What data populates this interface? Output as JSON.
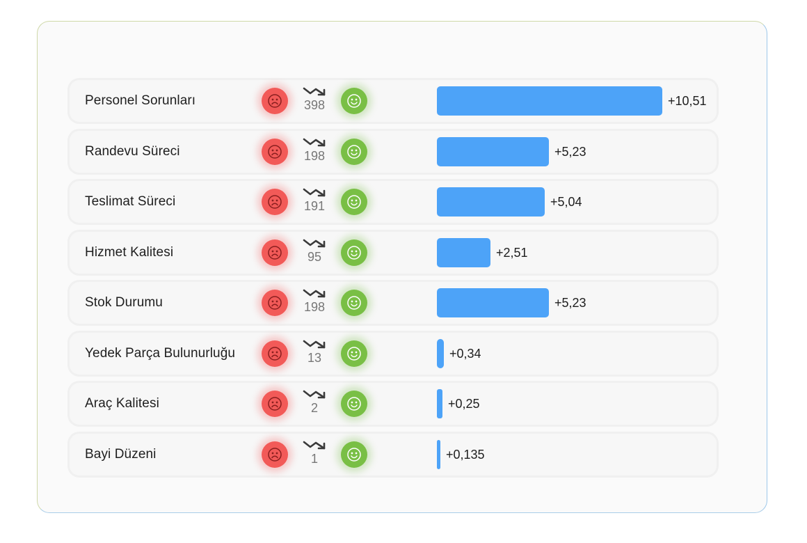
{
  "items": [
    {
      "label": "Personel Sorunları",
      "count": "398",
      "score_label": "+10,51",
      "score": 10.51
    },
    {
      "label": "Randevu Süreci",
      "count": "198",
      "score_label": "+5,23",
      "score": 5.23
    },
    {
      "label": "Teslimat Süreci",
      "count": "191",
      "score_label": "+5,04",
      "score": 5.04
    },
    {
      "label": "Hizmet Kalitesi",
      "count": "95",
      "score_label": "+2,51",
      "score": 2.51
    },
    {
      "label": "Stok Durumu",
      "count": "198",
      "score_label": "+5,23",
      "score": 5.23
    },
    {
      "label": "Yedek Parça Bulunurluğu",
      "count": "13",
      "score_label": "+0,34",
      "score": 0.34
    },
    {
      "label": "Araç Kalitesi",
      "count": "2",
      "score_label": "+0,25",
      "score": 0.25
    },
    {
      "label": "Bayi Düzeni",
      "count": "1",
      "score_label": "+0,135",
      "score": 0.135
    }
  ],
  "icons": {
    "negative": "sad-face-icon",
    "trend": "trending-up-icon",
    "positive": "happy-face-icon"
  },
  "colors": {
    "bar": "#4da3f8",
    "negative": "#f25a58",
    "positive": "#79bf45"
  }
}
